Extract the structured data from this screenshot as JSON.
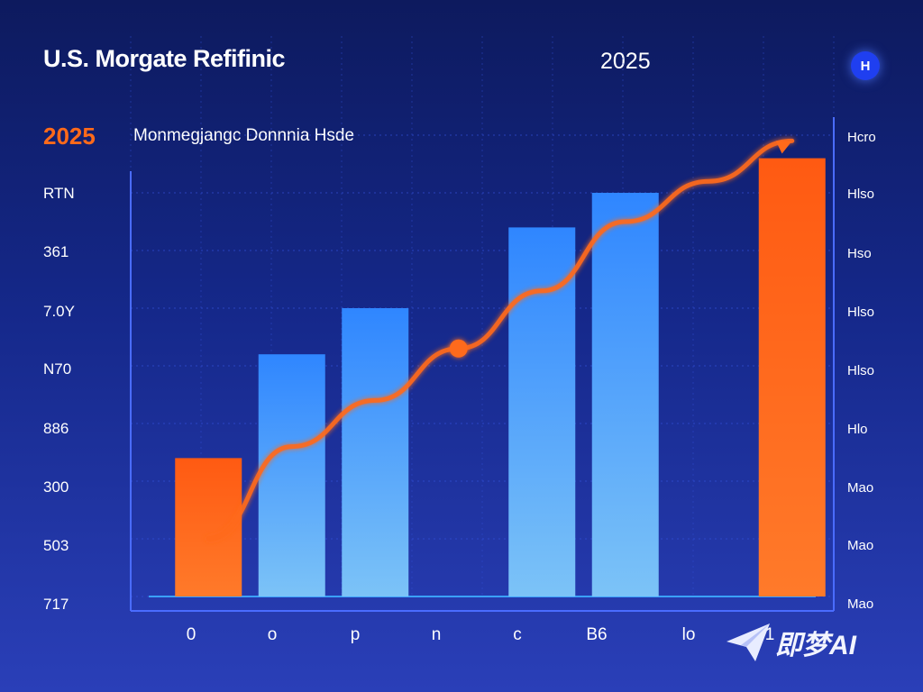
{
  "header": {
    "title": "U.S. Morgate Refifinic",
    "year": "2025",
    "badge": "H",
    "year_orange": "2025",
    "subtitle": "Monmegjangc Donnnia Hsde"
  },
  "axis_left_labels": [
    "RTN",
    "361",
    "7.0Y",
    "N70",
    "886",
    "300",
    "503",
    "717"
  ],
  "axis_right_labels": [
    "Hcro",
    "Hlso",
    "Hso",
    "Hlso",
    "Hlso",
    "Hlo",
    "Mao",
    "Mao",
    "Mao"
  ],
  "x_labels": [
    "0",
    "o",
    "p",
    "n",
    "c",
    "B6",
    "lo",
    "1"
  ],
  "watermark": {
    "text": "即梦AI",
    "icon": "paper-plane-icon"
  },
  "colors": {
    "orange": "#ff6a1a",
    "blue_top": "#2f86ff",
    "blue_bottom": "#7cc3f7",
    "grid": "#3350d8",
    "axis": "#4a6cff"
  },
  "chart_data": {
    "type": "bar",
    "categories": [
      "0",
      "o",
      "p",
      "n",
      "c",
      "B6",
      "lo",
      "1"
    ],
    "series": [
      {
        "values": [
          2.4,
          4.2,
          5.0,
          null,
          6.4,
          7.0,
          null,
          7.6
        ],
        "colors": [
          "orange",
          "blue",
          "blue",
          null,
          "blue",
          "blue",
          null,
          "orange"
        ]
      },
      {
        "type": "line",
        "values": [
          1.0,
          2.6,
          3.4,
          4.3,
          5.3,
          6.5,
          7.2,
          7.9
        ],
        "color": "orange",
        "marker_at_index": 3
      }
    ],
    "ylim": [
      0,
      8
    ],
    "grid": true,
    "legend": "none"
  }
}
